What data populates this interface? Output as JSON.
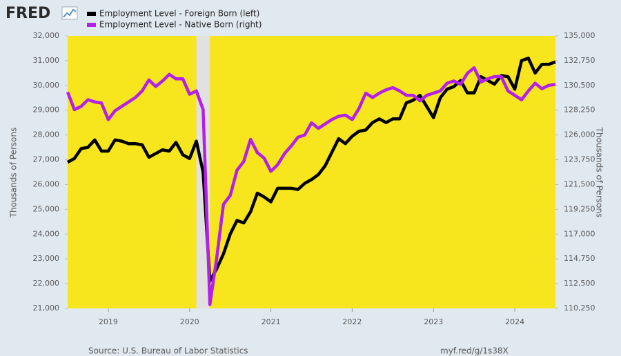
{
  "chart_data": {
    "type": "line",
    "logo": "FRED",
    "source": "Source: U.S. Bureau of Labor Statistics",
    "link": "myf.red/g/1s38X",
    "ylabel": "Thousands of Persons",
    "y2label": "Thousands of Persons",
    "x": [
      "2018-07",
      "2018-08",
      "2018-09",
      "2018-10",
      "2018-11",
      "2018-12",
      "2019-01",
      "2019-02",
      "2019-03",
      "2019-04",
      "2019-05",
      "2019-06",
      "2019-07",
      "2019-08",
      "2019-09",
      "2019-10",
      "2019-11",
      "2019-12",
      "2020-01",
      "2020-02",
      "2020-03",
      "2020-04",
      "2020-05",
      "2020-06",
      "2020-07",
      "2020-08",
      "2020-09",
      "2020-10",
      "2020-11",
      "2020-12",
      "2021-01",
      "2021-02",
      "2021-03",
      "2021-04",
      "2021-05",
      "2021-06",
      "2021-07",
      "2021-08",
      "2021-09",
      "2021-10",
      "2021-11",
      "2021-12",
      "2022-01",
      "2022-02",
      "2022-03",
      "2022-04",
      "2022-05",
      "2022-06",
      "2022-07",
      "2022-08",
      "2022-09",
      "2022-10",
      "2022-11",
      "2022-12",
      "2023-01",
      "2023-02",
      "2023-03",
      "2023-04",
      "2023-05",
      "2023-06",
      "2023-07",
      "2023-08",
      "2023-09",
      "2023-10",
      "2023-11",
      "2023-12",
      "2024-01",
      "2024-02",
      "2024-03",
      "2024-04",
      "2024-05",
      "2024-06",
      "2024-07"
    ],
    "xlim": [
      "2018-07",
      "2024-07"
    ],
    "xticks": [
      {
        "value": "2019-01",
        "label": "2019"
      },
      {
        "value": "2020-01",
        "label": "2020"
      },
      {
        "value": "2021-01",
        "label": "2021"
      },
      {
        "value": "2022-01",
        "label": "2022"
      },
      {
        "value": "2023-01",
        "label": "2023"
      },
      {
        "value": "2024-01",
        "label": "2024"
      }
    ],
    "recession": {
      "start": "2020-02",
      "end": "2020-04"
    },
    "ylim": [
      21000,
      32000
    ],
    "yticks": [
      {
        "value": 21000,
        "label": "21,000"
      },
      {
        "value": 22000,
        "label": "22,000"
      },
      {
        "value": 23000,
        "label": "23,000"
      },
      {
        "value": 24000,
        "label": "24,000"
      },
      {
        "value": 25000,
        "label": "25,000"
      },
      {
        "value": 26000,
        "label": "26,000"
      },
      {
        "value": 27000,
        "label": "27,000"
      },
      {
        "value": 28000,
        "label": "28,000"
      },
      {
        "value": 29000,
        "label": "29,000"
      },
      {
        "value": 30000,
        "label": "30,000"
      },
      {
        "value": 31000,
        "label": "31,000"
      },
      {
        "value": 32000,
        "label": "32,000"
      }
    ],
    "y2lim": [
      110250,
      135000
    ],
    "y2ticks": [
      {
        "value": 110250,
        "label": "110,250"
      },
      {
        "value": 112500,
        "label": "112,500"
      },
      {
        "value": 114750,
        "label": "114,750"
      },
      {
        "value": 117000,
        "label": "117,000"
      },
      {
        "value": 119250,
        "label": "119,250"
      },
      {
        "value": 121500,
        "label": "121,500"
      },
      {
        "value": 123750,
        "label": "123,750"
      },
      {
        "value": 126000,
        "label": "126,000"
      },
      {
        "value": 128250,
        "label": "128,250"
      },
      {
        "value": 130500,
        "label": "130,500"
      },
      {
        "value": 132750,
        "label": "132,750"
      },
      {
        "value": 135000,
        "label": "135,000"
      }
    ],
    "background": "#f7e61d",
    "series": [
      {
        "name": "Employment Level - Foreign Born (left)",
        "color": "#000000",
        "axis": "y",
        "values": [
          26900,
          27050,
          27450,
          27500,
          27800,
          27350,
          27350,
          27800,
          27750,
          27650,
          27650,
          27600,
          27100,
          27250,
          27400,
          27350,
          27700,
          27200,
          27050,
          27750,
          26500,
          22100,
          22600,
          23200,
          24000,
          24550,
          24450,
          24900,
          25650,
          25500,
          25300,
          25850,
          25850,
          25850,
          25800,
          26050,
          26200,
          26400,
          26750,
          27300,
          27850,
          27650,
          27950,
          28150,
          28200,
          28500,
          28650,
          28500,
          28650,
          28650,
          29300,
          29400,
          29600,
          29150,
          28700,
          29500,
          29850,
          29950,
          30200,
          29700,
          29700,
          30350,
          30200,
          30050,
          30400,
          30350,
          29850,
          31000,
          31100,
          30500,
          30850,
          30850,
          30950
        ]
      },
      {
        "name": "Employment Level - Native Born (right)",
        "color": "#b520e8",
        "axis": "y2",
        "values": [
          129900,
          128300,
          128600,
          129200,
          129000,
          128900,
          127400,
          128200,
          128600,
          129000,
          129400,
          130000,
          131000,
          130400,
          130900,
          131500,
          131100,
          131100,
          129700,
          130000,
          128300,
          110600,
          114800,
          119700,
          120500,
          122800,
          123600,
          125600,
          124400,
          123900,
          122700,
          123300,
          124300,
          125000,
          125800,
          126000,
          127100,
          126600,
          127000,
          127400,
          127700,
          127800,
          127400,
          128400,
          129800,
          129400,
          129800,
          130100,
          130300,
          130000,
          129600,
          129600,
          129100,
          129600,
          129800,
          130000,
          130700,
          130900,
          130600,
          131600,
          132100,
          130800,
          131100,
          131300,
          131300,
          130000,
          129600,
          129200,
          130000,
          130700,
          130200,
          130500,
          130600
        ]
      }
    ]
  }
}
